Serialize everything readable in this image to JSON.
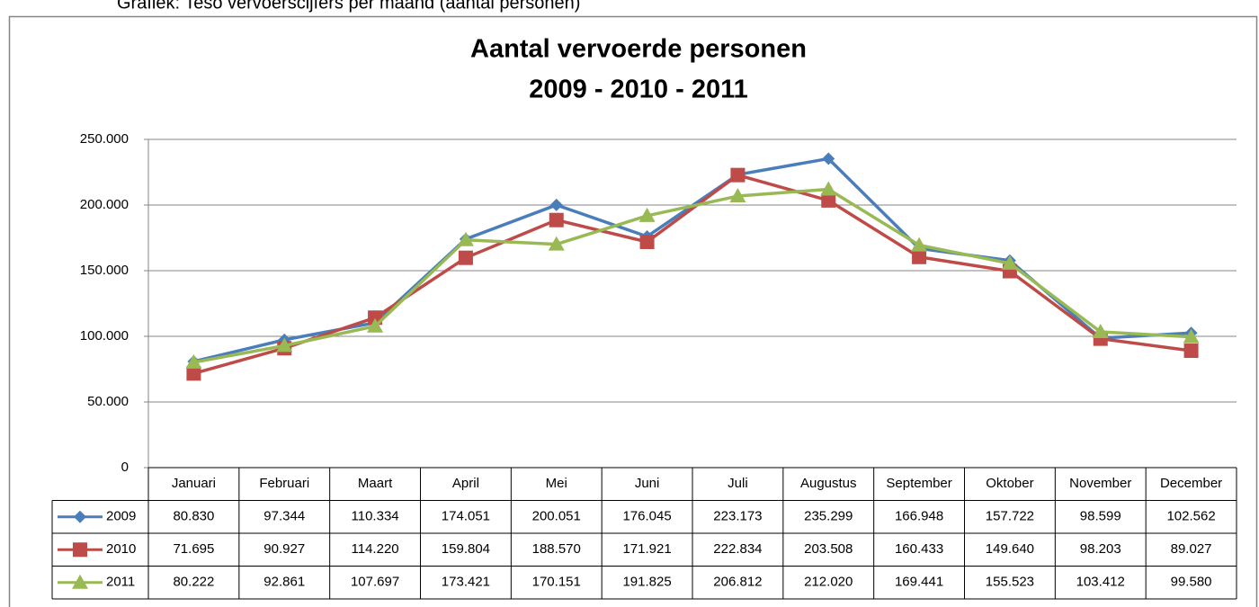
{
  "caption": "Grafiek: Teso vervoerscijfers per maand (aantal personen)",
  "chart_data": {
    "type": "line",
    "title": "Aantal vervoerde personen",
    "subtitle": "2009 - 2010 - 2011",
    "categories": [
      "Januari",
      "Februari",
      "Maart",
      "April",
      "Mei",
      "Juni",
      "Juli",
      "Augustus",
      "September",
      "Oktober",
      "November",
      "December"
    ],
    "series": [
      {
        "name": "2009",
        "color": "#4a7ebb",
        "marker": "diamond",
        "values": [
          80830,
          97344,
          110334,
          174051,
          200051,
          176045,
          223173,
          235299,
          166948,
          157722,
          98599,
          102562
        ],
        "value_labels": [
          "80.830",
          "97.344",
          "110.334",
          "174.051",
          "200.051",
          "176.045",
          "223.173",
          "235.299",
          "166.948",
          "157.722",
          "98.599",
          "102.562"
        ]
      },
      {
        "name": "2010",
        "color": "#be4b48",
        "marker": "square",
        "values": [
          71695,
          90927,
          114220,
          159804,
          188570,
          171921,
          222834,
          203508,
          160433,
          149640,
          98203,
          89027
        ],
        "value_labels": [
          "71.695",
          "90.927",
          "114.220",
          "159.804",
          "188.570",
          "171.921",
          "222.834",
          "203.508",
          "160.433",
          "149.640",
          "98.203",
          "89.027"
        ]
      },
      {
        "name": "2011",
        "color": "#98b954",
        "marker": "triangle",
        "values": [
          80222,
          92861,
          107697,
          173421,
          170151,
          191825,
          206812,
          212020,
          169441,
          155523,
          103412,
          99580
        ],
        "value_labels": [
          "80.222",
          "92.861",
          "107.697",
          "173.421",
          "170.151",
          "191.825",
          "206.812",
          "212.020",
          "169.441",
          "155.523",
          "103.412",
          "99.580"
        ]
      }
    ],
    "ylim": [
      0,
      250000
    ],
    "yticks": [
      0,
      {
        "value": 50000,
        "label": "50.000"
      },
      {
        "value": 100000,
        "label": "100.000"
      },
      {
        "value": 150000,
        "label": "150.000"
      },
      {
        "value": 200000,
        "label": "200.000"
      },
      {
        "value": 250000,
        "label": "250.000"
      }
    ],
    "grid": true
  }
}
